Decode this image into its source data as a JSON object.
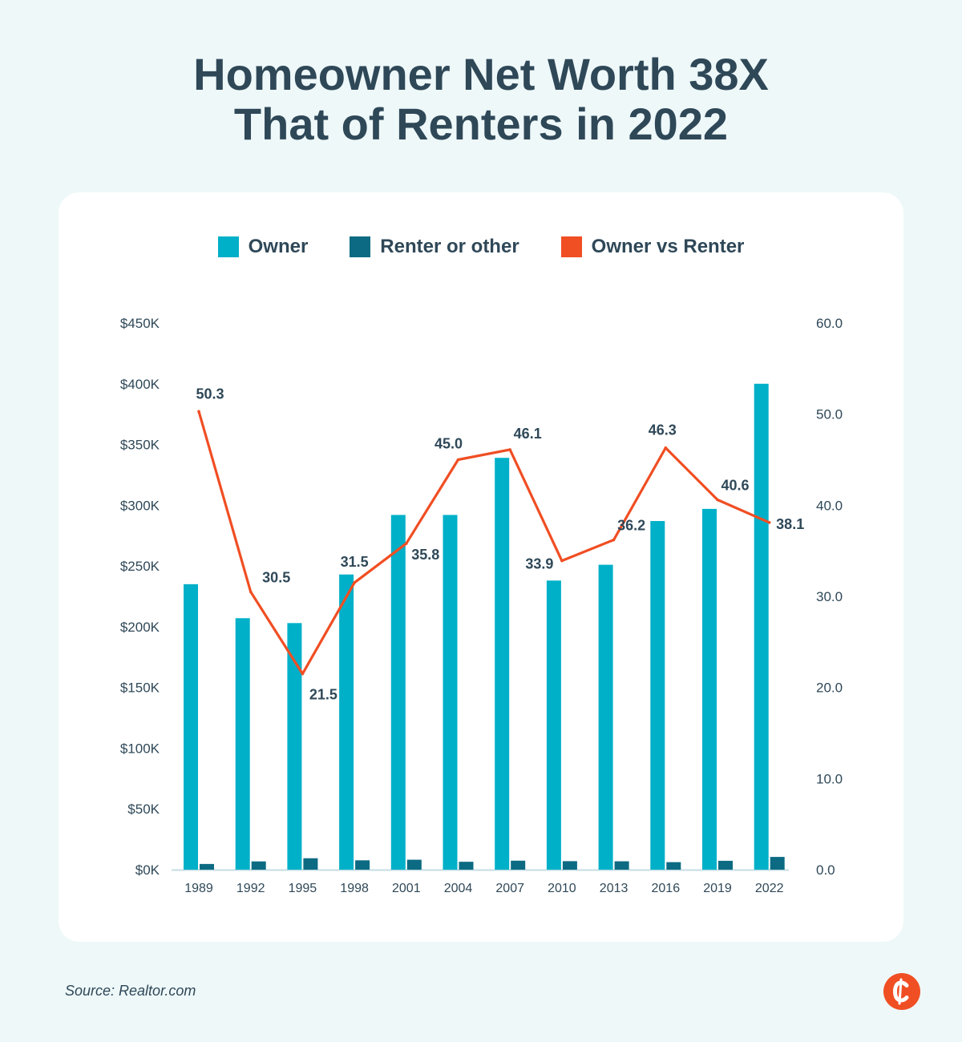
{
  "title_line1": "Homeowner Net Worth 38X",
  "title_line2": "That of Renters in 2022",
  "source": "Source: Realtor.com",
  "brand_icon": "c-logo-icon",
  "colors": {
    "owner": "#00b0c8",
    "renter": "#0c6b82",
    "ratio": "#f04e23",
    "text": "#2f4858",
    "axis": "#c4dde3"
  },
  "chart_data": {
    "type": "bar",
    "title": "Homeowner Net Worth 38X That of Renters in 2022",
    "categories": [
      "1989",
      "1992",
      "1995",
      "1998",
      "2001",
      "2004",
      "2007",
      "2010",
      "2013",
      "2016",
      "2019",
      "2022"
    ],
    "series": [
      {
        "name": "Owner",
        "type": "bar",
        "axis": "left",
        "values": [
          235,
          207,
          203,
          243,
          292,
          292,
          339,
          238,
          251,
          287,
          297,
          400
        ]
      },
      {
        "name": "Renter or other",
        "type": "bar",
        "axis": "left",
        "values": [
          4.7,
          6.8,
          9.4,
          7.7,
          8.2,
          6.5,
          7.4,
          7.0,
          6.9,
          6.2,
          7.3,
          10.5
        ]
      },
      {
        "name": "Owner vs Renter",
        "type": "line",
        "axis": "right",
        "values": [
          50.3,
          30.5,
          21.5,
          31.5,
          35.8,
          45.0,
          46.1,
          33.9,
          36.2,
          46.3,
          40.6,
          38.1
        ],
        "labels": [
          "50.3",
          "30.5",
          "21.5",
          "31.5",
          "35.8",
          "45.0",
          "46.1",
          "33.9",
          "36.2",
          "46.3",
          "40.6",
          "38.1"
        ]
      }
    ],
    "y_left": {
      "ylim": [
        0,
        450
      ],
      "unit": "thousands of dollars",
      "tick_values": [
        0,
        50,
        100,
        150,
        200,
        250,
        300,
        350,
        400,
        450
      ],
      "tick_labels": [
        "$0K",
        "$50K",
        "$100K",
        "$150K",
        "$200K",
        "$250K",
        "$300K",
        "$350K",
        "$400K",
        "$450K"
      ]
    },
    "y_right": {
      "ylim": [
        0,
        60
      ],
      "tick_values": [
        0,
        10,
        20,
        30,
        40,
        50,
        60
      ],
      "tick_labels": [
        "0.0",
        "10.0",
        "20.0",
        "30.0",
        "40.0",
        "50.0",
        "60.0"
      ]
    },
    "legend": "top-center",
    "grid": false
  }
}
